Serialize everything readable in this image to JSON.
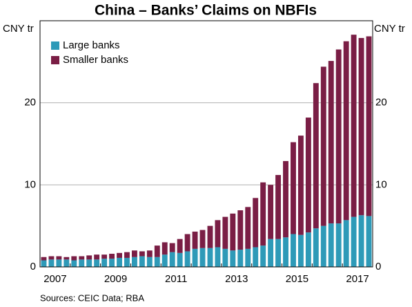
{
  "chart_data": {
    "type": "stacked_bar",
    "title": "China – Banks’ Claims on NBFIs",
    "y_label": "CNY tr",
    "y2_label": "CNY tr",
    "source": "Sources:  CEIC Data; RBA",
    "categories": [
      "2007",
      null,
      null,
      null,
      null,
      null,
      null,
      null,
      "2009",
      null,
      null,
      null,
      null,
      null,
      null,
      null,
      "2011",
      null,
      null,
      null,
      null,
      null,
      null,
      null,
      "2013",
      null,
      null,
      null,
      null,
      null,
      null,
      null,
      "2015",
      null,
      null,
      null,
      null,
      null,
      null,
      null,
      "2017",
      null,
      null,
      null
    ],
    "series": [
      {
        "name": "Large banks",
        "color": "#2e9ab8",
        "values": [
          0.8,
          0.9,
          0.9,
          0.9,
          0.8,
          0.9,
          0.9,
          0.9,
          1.0,
          1.0,
          1.1,
          1.1,
          1.2,
          1.3,
          1.2,
          1.2,
          1.5,
          1.8,
          1.7,
          1.9,
          2.2,
          2.3,
          2.3,
          2.4,
          2.2,
          2.0,
          2.1,
          2.2,
          2.4,
          2.6,
          3.4,
          3.4,
          3.6,
          4.0,
          3.9,
          4.2,
          4.7,
          5.0,
          5.3,
          5.3,
          5.7,
          6.1,
          6.3,
          6.2
        ]
      },
      {
        "name": "Smaller banks",
        "color": "#7a1e45",
        "values": [
          0.4,
          0.4,
          0.4,
          0.3,
          0.5,
          0.4,
          0.5,
          0.6,
          0.5,
          0.6,
          0.6,
          0.7,
          0.8,
          0.6,
          0.8,
          1.4,
          1.5,
          1.1,
          1.7,
          2.1,
          2.1,
          2.2,
          2.7,
          3.3,
          3.9,
          4.5,
          4.8,
          5.1,
          6.0,
          7.7,
          6.6,
          7.8,
          9.3,
          11.2,
          12.1,
          14.0,
          17.7,
          19.4,
          19.8,
          21.2,
          21.8,
          22.2,
          21.6,
          21.9
        ]
      }
    ],
    "ylim": [
      0,
      30
    ],
    "yticks": [
      0,
      10,
      20
    ],
    "y2lim": [
      0,
      30
    ],
    "y2ticks": [
      0,
      10,
      20
    ],
    "grid": true,
    "legend": "upper left"
  }
}
